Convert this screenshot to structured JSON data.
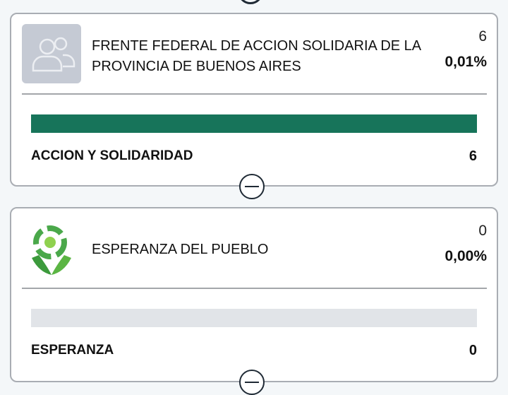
{
  "cards": [
    {
      "title": "FRENTE FEDERAL DE ACCION SOLIDARIA DE LA PROVINCIA DE BUENOS AIRES",
      "votes": "6",
      "percent": "0,01%",
      "list": {
        "name": "ACCION Y SOLIDARIDAD",
        "votes": "6",
        "fill_percent": 100
      },
      "logo": "users-placeholder-icon"
    },
    {
      "title": "ESPERANZA DEL PUEBLO",
      "votes": "0",
      "percent": "0,00%",
      "list": {
        "name": "ESPERANZA",
        "votes": "0",
        "fill_percent": 0
      },
      "logo_text": "ESPERANZA DEL PUEBLO"
    }
  ],
  "colors": {
    "bar_fill": "#17745a",
    "bar_track": "#e1e4e8",
    "logo_placeholder": "#c5cad4"
  }
}
